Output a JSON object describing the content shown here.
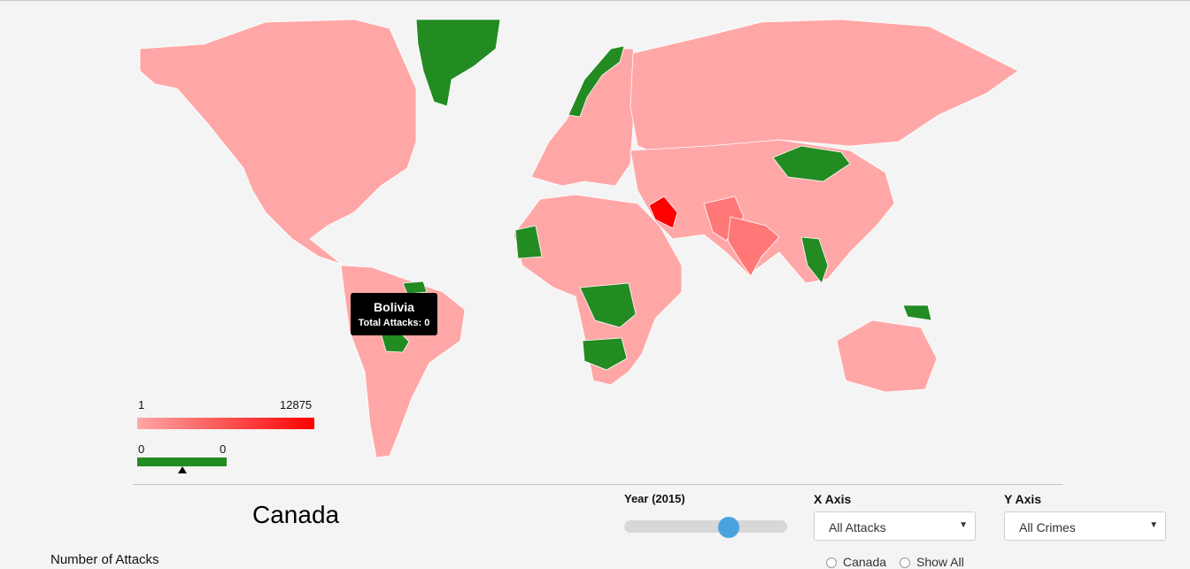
{
  "colors": {
    "background": "#f4f4f4",
    "low_attacks": "#ffa7a7",
    "medium_attacks": "#ff7777",
    "high_attacks": "#ff0000",
    "zero_attacks": "#228b22",
    "slider_thumb": "#4aa3df"
  },
  "tooltip": {
    "country": "Bolivia",
    "line": "Total Attacks: 0"
  },
  "legend": {
    "attacks_min": "1",
    "attacks_max": "12875",
    "zero_min": "0",
    "zero_max": "0"
  },
  "selected_country": "Canada",
  "controls": {
    "year_label": "Year (2015)",
    "year_fraction": 0.64,
    "x_axis_label": "X Axis",
    "x_axis_value": "All Attacks",
    "y_axis_label": "Y Axis",
    "y_axis_value": "All Crimes",
    "bottom_label": "Number of Attacks",
    "radio_1_text": "Canada",
    "radio_2_text": "Show All"
  },
  "map_regions": [
    {
      "name": "North America",
      "category": "low"
    },
    {
      "name": "Greenland",
      "category": "zero"
    },
    {
      "name": "South America",
      "category": "low"
    },
    {
      "name": "Bolivia",
      "category": "zero"
    },
    {
      "name": "Guyana",
      "category": "zero"
    },
    {
      "name": "Europe",
      "category": "low"
    },
    {
      "name": "Norway",
      "category": "zero"
    },
    {
      "name": "Africa",
      "category": "low"
    },
    {
      "name": "Mauritania",
      "category": "zero"
    },
    {
      "name": "Central Africa",
      "category": "zero"
    },
    {
      "name": "Zambia",
      "category": "zero"
    },
    {
      "name": "Russia",
      "category": "low"
    },
    {
      "name": "Asia",
      "category": "low"
    },
    {
      "name": "Mongolia",
      "category": "zero"
    },
    {
      "name": "Iraq",
      "category": "high"
    },
    {
      "name": "Pakistan",
      "category": "medium"
    },
    {
      "name": "India",
      "category": "medium"
    },
    {
      "name": "Vietnam",
      "category": "zero"
    },
    {
      "name": "Australia",
      "category": "low"
    },
    {
      "name": "Papua New Guinea",
      "category": "zero"
    }
  ]
}
